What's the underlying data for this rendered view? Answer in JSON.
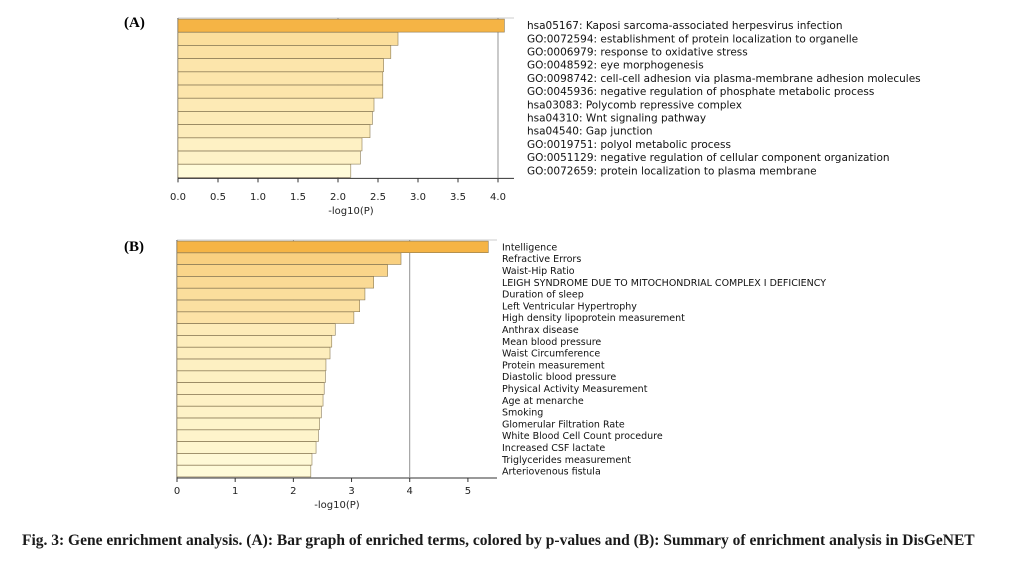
{
  "colors": {
    "bar_high": "#f5b445",
    "bar_low": "#fffbd9",
    "bar_stroke": "#8a7a55",
    "axis": "#333333",
    "gridline": "#888888"
  },
  "caption": "Fig. 3: Gene enrichment analysis. (A): Bar graph of enriched terms, colored by p-values and (B): Summary of enrichment analysis in DisGeNET",
  "chart_data": [
    {
      "panel": "(A)",
      "type": "bar",
      "orientation": "horizontal",
      "xlabel": "-log10(P)",
      "ticks": [
        "0.0",
        "0.5",
        "1.0",
        "1.5",
        "2.0",
        "2.5",
        "3.0",
        "3.5",
        "4.0"
      ],
      "xlim": [
        0,
        4.2
      ],
      "gridlines": [
        2,
        4
      ],
      "categories": [
        "hsa05167: Kaposi sarcoma-associated herpesvirus infection",
        "GO:0072594: establishment of protein localization to organelle",
        "GO:0006979: response to oxidative stress",
        "GO:0048592: eye morphogenesis",
        "GO:0098742: cell-cell adhesion via plasma-membrane adhesion molecules",
        "GO:0045936: negative regulation of phosphate metabolic process",
        "hsa03083: Polycomb repressive complex",
        "hsa04310: Wnt signaling pathway",
        "hsa04540: Gap junction",
        "GO:0019751: polyol metabolic process",
        "GO:0051129: negative regulation of cellular component organization",
        "GO:0072659: protein localization to plasma membrane"
      ],
      "values": [
        4.08,
        2.75,
        2.66,
        2.57,
        2.56,
        2.56,
        2.45,
        2.43,
        2.4,
        2.3,
        2.28,
        2.16
      ]
    },
    {
      "panel": "(B)",
      "type": "bar",
      "orientation": "horizontal",
      "xlabel": "-log10(P)",
      "ticks": [
        "0",
        "1",
        "2",
        "3",
        "4",
        "5"
      ],
      "xlim": [
        0,
        5.5
      ],
      "gridlines": [
        2,
        4
      ],
      "categories": [
        "Intelligence",
        "Refractive Errors",
        "Waist-Hip Ratio",
        "LEIGH SYNDROME DUE TO MITOCHONDRIAL COMPLEX I DEFICIENCY",
        "Duration of sleep",
        "Left Ventricular Hypertrophy",
        "High density lipoprotein measurement",
        "Anthrax disease",
        "Mean blood pressure",
        "Waist Circumference",
        "Protein measurement",
        "Diastolic blood pressure",
        "Physical Activity Measurement",
        "Age at menarche",
        "Smoking",
        "Glomerular Filtration Rate",
        "White Blood Cell Count procedure",
        "Increased CSF lactate",
        "Triglycerides measurement",
        "Arteriovenous fistula"
      ],
      "values": [
        5.35,
        3.85,
        3.62,
        3.38,
        3.23,
        3.14,
        3.04,
        2.72,
        2.66,
        2.63,
        2.56,
        2.55,
        2.53,
        2.51,
        2.48,
        2.45,
        2.43,
        2.39,
        2.32,
        2.3
      ]
    }
  ]
}
